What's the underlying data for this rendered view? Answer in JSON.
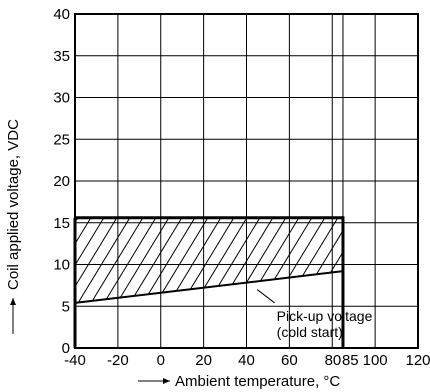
{
  "chart_data": {
    "type": "line",
    "xlabel": "Ambient temperature, °C",
    "ylabel": "Coil applied voltage, VDC",
    "xlim": [
      -40,
      120
    ],
    "ylim": [
      0,
      40
    ],
    "x_ticks": [
      -40,
      -20,
      0,
      20,
      40,
      60,
      80,
      85,
      100,
      120
    ],
    "x_tick_labels": [
      "-40",
      "-20",
      "0",
      "20",
      "40",
      "60",
      "80",
      "85",
      "100",
      "120"
    ],
    "y_ticks": [
      0,
      5,
      10,
      15,
      20,
      25,
      30,
      35,
      40
    ],
    "y_tick_labels": [
      "0",
      "5",
      "10",
      "15",
      "20",
      "25",
      "30",
      "35",
      "40"
    ],
    "grid": true,
    "series": [
      {
        "name": "Pick-up voltage (cold start)",
        "x": [
          -40,
          85
        ],
        "y": [
          5.4,
          9.2
        ]
      }
    ],
    "operating_region": {
      "x": [
        -40,
        85
      ],
      "y_top": 15.6,
      "pattern": "hatched",
      "hatch_from_curve_to": 15.6
    },
    "max_temperature_line": {
      "x": 85,
      "y": [
        0,
        15.6
      ]
    },
    "annotations": [
      {
        "lines": [
          "Pick-up voltage",
          "(cold start)"
        ],
        "target": [
          45,
          7.0
        ],
        "text_at": [
          55,
          3.0
        ]
      }
    ],
    "colors": {
      "line": "#000000",
      "grid": "#000000",
      "background": "#ffffff"
    }
  }
}
